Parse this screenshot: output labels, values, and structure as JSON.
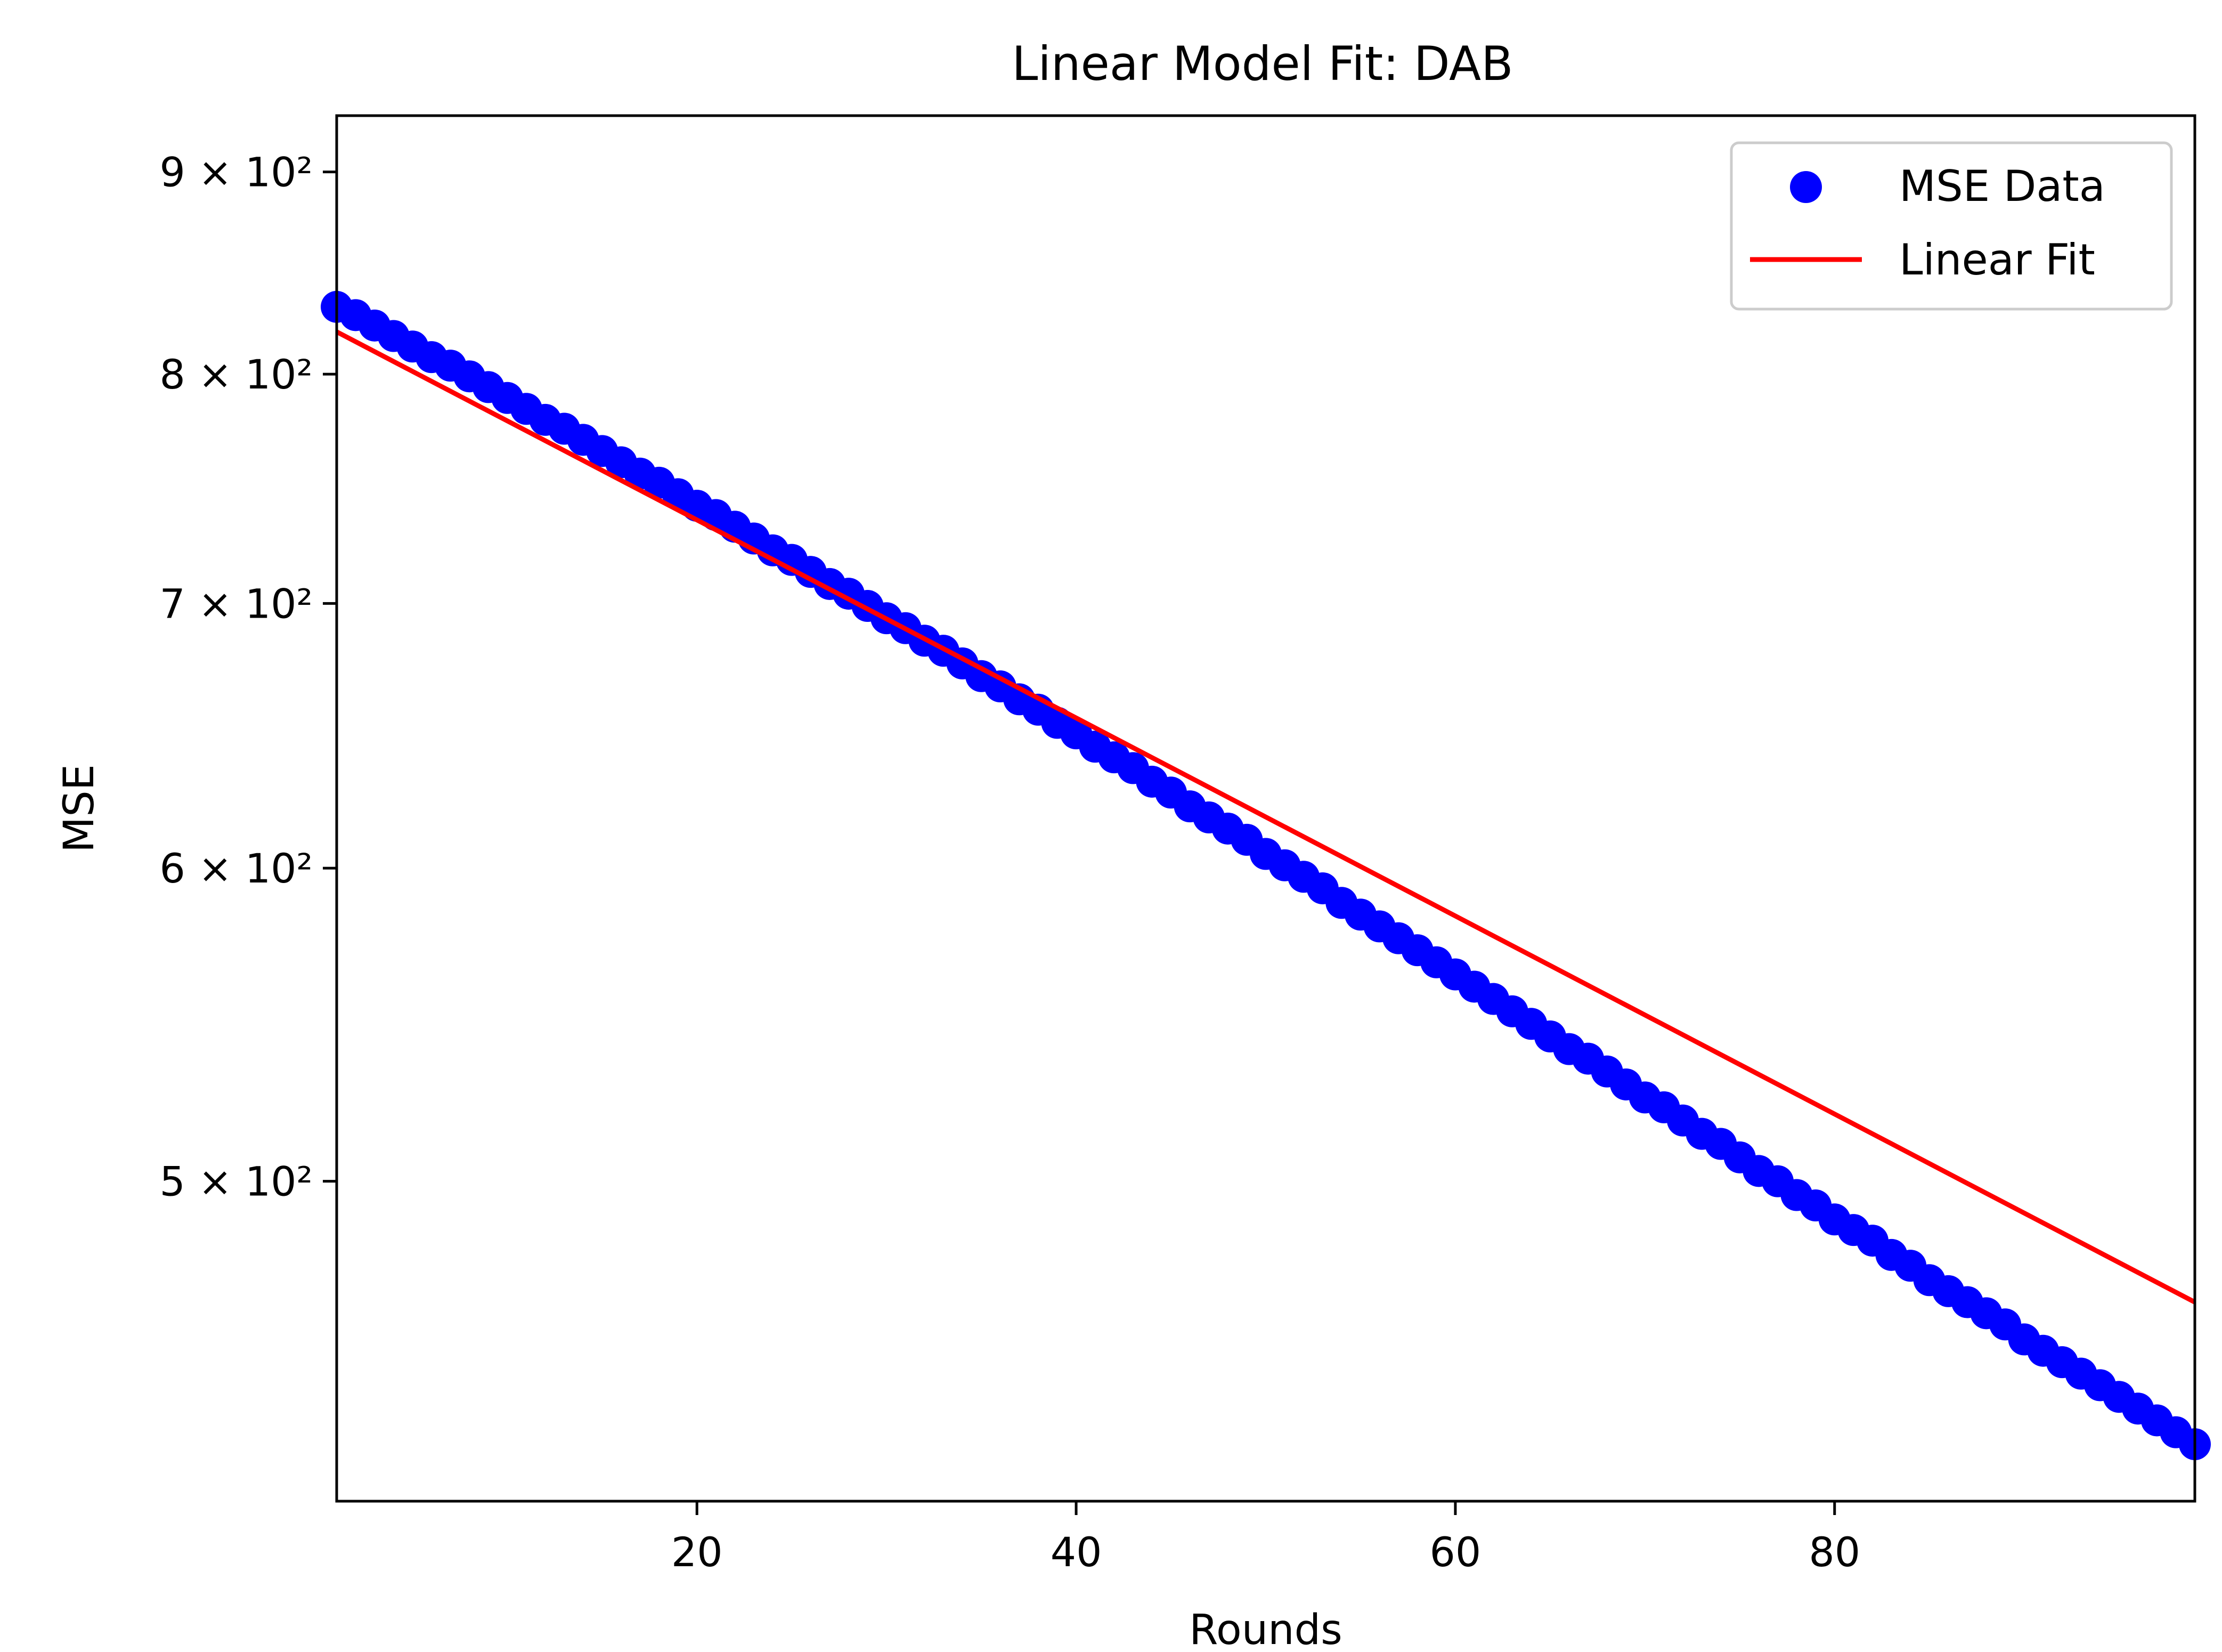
{
  "chart_data": {
    "type": "scatter",
    "title": "Linear Model Fit: DAB",
    "xlabel": "Rounds",
    "ylabel": "MSE",
    "yscale": "log",
    "xlim": [
      1,
      99
    ],
    "ylim": [
      415,
      930
    ],
    "grid": false,
    "legend_position": "top-right",
    "x_ticks": [
      {
        "value": 20,
        "label": "20"
      },
      {
        "value": 40,
        "label": "40"
      },
      {
        "value": 60,
        "label": "60"
      },
      {
        "value": 80,
        "label": "80"
      }
    ],
    "y_ticks": [
      {
        "value": 500,
        "label": "5 × 10²"
      },
      {
        "value": 600,
        "label": "6 × 10²"
      },
      {
        "value": 700,
        "label": "7 × 10²"
      },
      {
        "value": 800,
        "label": "8 × 10²"
      },
      {
        "value": 900,
        "label": "9 × 10²"
      }
    ],
    "series": [
      {
        "name": "MSE Data",
        "kind": "scatter",
        "color": "#0000ff",
        "points": [
          [
            1,
            832
          ],
          [
            2,
            828
          ],
          [
            3,
            823
          ],
          [
            4,
            818
          ],
          [
            5,
            813
          ],
          [
            6,
            808
          ],
          [
            7,
            804
          ],
          [
            8,
            799
          ],
          [
            9,
            794
          ],
          [
            10,
            789
          ],
          [
            11,
            784
          ],
          [
            12,
            779
          ],
          [
            13,
            775
          ],
          [
            14,
            770
          ],
          [
            15,
            765
          ],
          [
            16,
            760
          ],
          [
            17,
            755
          ],
          [
            18,
            751
          ],
          [
            19,
            746
          ],
          [
            20,
            741
          ],
          [
            21,
            737
          ],
          [
            22,
            732
          ],
          [
            23,
            727
          ],
          [
            24,
            722
          ],
          [
            25,
            718
          ],
          [
            26,
            713
          ],
          [
            27,
            708
          ],
          [
            28,
            704
          ],
          [
            29,
            699
          ],
          [
            30,
            694
          ],
          [
            31,
            690
          ],
          [
            32,
            685
          ],
          [
            33,
            681
          ],
          [
            34,
            676
          ],
          [
            35,
            671
          ],
          [
            36,
            667
          ],
          [
            37,
            662
          ],
          [
            38,
            658
          ],
          [
            39,
            653
          ],
          [
            40,
            649
          ],
          [
            41,
            644
          ],
          [
            42,
            640
          ],
          [
            43,
            636
          ],
          [
            44,
            631
          ],
          [
            45,
            627
          ],
          [
            46,
            622
          ],
          [
            47,
            618
          ],
          [
            48,
            614
          ],
          [
            49,
            610
          ],
          [
            50,
            605
          ],
          [
            51,
            601
          ],
          [
            52,
            597
          ],
          [
            53,
            593
          ],
          [
            54,
            588
          ],
          [
            55,
            584
          ],
          [
            56,
            580
          ],
          [
            57,
            576
          ],
          [
            58,
            572
          ],
          [
            59,
            568
          ],
          [
            60,
            564
          ],
          [
            61,
            560
          ],
          [
            62,
            556
          ],
          [
            63,
            552
          ],
          [
            64,
            548
          ],
          [
            65,
            544
          ],
          [
            66,
            540
          ],
          [
            67,
            537
          ],
          [
            68,
            533
          ],
          [
            69,
            529
          ],
          [
            70,
            525
          ],
          [
            71,
            522
          ],
          [
            72,
            518
          ],
          [
            73,
            514
          ],
          [
            74,
            511
          ],
          [
            75,
            507
          ],
          [
            76,
            503
          ],
          [
            77,
            500
          ],
          [
            78,
            496
          ],
          [
            79,
            493
          ],
          [
            80,
            489
          ],
          [
            81,
            486
          ],
          [
            82,
            483
          ],
          [
            83,
            479
          ],
          [
            84,
            476
          ],
          [
            85,
            472
          ],
          [
            86,
            469
          ],
          [
            87,
            466
          ],
          [
            88,
            463
          ],
          [
            89,
            460
          ],
          [
            90,
            456
          ],
          [
            91,
            453
          ],
          [
            92,
            450
          ],
          [
            93,
            447
          ],
          [
            94,
            444
          ],
          [
            95,
            441
          ],
          [
            96,
            438
          ],
          [
            97,
            435
          ],
          [
            98,
            432
          ],
          [
            99,
            429
          ]
        ]
      },
      {
        "name": "Linear Fit",
        "kind": "line",
        "color": "#ff0000",
        "points": [
          [
            1,
            820
          ],
          [
            99,
            466
          ]
        ]
      }
    ]
  }
}
